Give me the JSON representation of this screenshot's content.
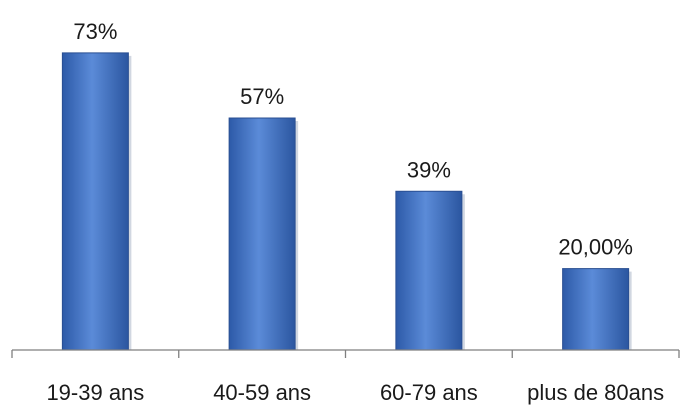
{
  "chart_data": {
    "type": "bar",
    "categories": [
      "19-39 ans",
      "40-59 ans",
      "60-79 ans",
      "plus de 80ans"
    ],
    "values": [
      73,
      57,
      39,
      20
    ],
    "data_labels": [
      "73%",
      "57%",
      "39%",
      "20,00%"
    ],
    "title": "",
    "xlabel": "",
    "ylabel": "",
    "ylim": [
      0,
      100
    ],
    "grid": false,
    "legend": "none",
    "colors": {
      "bar": "#3f6fbf",
      "bar_edge": "#2a4f92",
      "axis": "#7f7f7f",
      "text": "#1a1a1a"
    }
  }
}
